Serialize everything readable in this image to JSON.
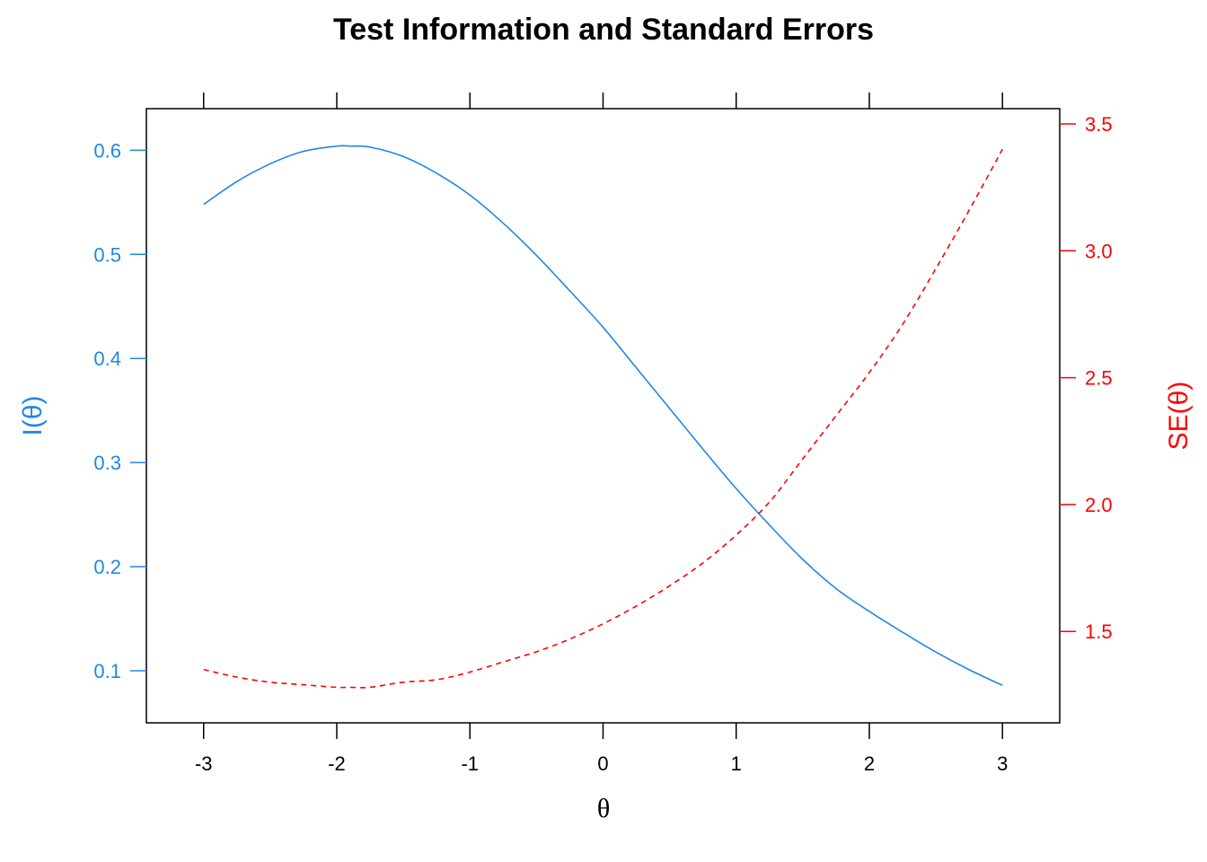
{
  "chart_data": {
    "type": "line",
    "title": "Test Information and Standard Errors",
    "xlabel": "θ",
    "ylabel_left": "I(θ)",
    "ylabel_right": "SE(θ)",
    "xlim": [
      -3.43,
      3.43
    ],
    "x_ticks": [
      -3,
      -2,
      -1,
      0,
      1,
      2,
      3
    ],
    "x_tick_labels": [
      "-3",
      "-2",
      "-1",
      "0",
      "1",
      "2",
      "3"
    ],
    "y_left_lim": [
      0.05,
      0.64
    ],
    "y_left_ticks": [
      0.1,
      0.2,
      0.3,
      0.4,
      0.5,
      0.6
    ],
    "y_left_tick_labels": [
      "0.1",
      "0.2",
      "0.3",
      "0.4",
      "0.5",
      "0.6"
    ],
    "y_right_lim": [
      1.14,
      3.56
    ],
    "y_right_ticks": [
      1.5,
      2.0,
      2.5,
      3.0,
      3.5
    ],
    "y_right_tick_labels": [
      "1.5",
      "2.0",
      "2.5",
      "3.0",
      "3.5"
    ],
    "grid": false,
    "colors": {
      "information": "#1E88E5",
      "se": "#FF0000",
      "axis": "#000000"
    },
    "series": [
      {
        "axis": "left",
        "line": "solid",
        "x": [
          -3.0,
          -2.75,
          -2.5,
          -2.25,
          -2.0,
          -1.9,
          -1.75,
          -1.5,
          -1.25,
          -1.0,
          -0.75,
          -0.5,
          -0.25,
          0.0,
          0.25,
          0.5,
          0.75,
          1.0,
          1.25,
          1.5,
          1.75,
          2.0,
          2.25,
          2.5,
          2.75,
          3.0
        ],
        "values": [
          0.548,
          0.57,
          0.587,
          0.599,
          0.604,
          0.604,
          0.603,
          0.594,
          0.578,
          0.557,
          0.53,
          0.499,
          0.465,
          0.43,
          0.391,
          0.352,
          0.313,
          0.275,
          0.24,
          0.207,
          0.179,
          0.157,
          0.137,
          0.118,
          0.101,
          0.086
        ]
      },
      {
        "axis": "right",
        "line": "dashed",
        "x": [
          -3.0,
          -2.75,
          -2.5,
          -2.25,
          -2.0,
          -1.9,
          -1.75,
          -1.5,
          -1.25,
          -1.0,
          -0.75,
          -0.5,
          -0.25,
          0.0,
          0.25,
          0.5,
          0.75,
          1.0,
          1.25,
          1.5,
          1.75,
          2.0,
          2.25,
          2.5,
          2.75,
          3.0
        ],
        "values": [
          1.35,
          1.32,
          1.3,
          1.29,
          1.28,
          1.28,
          1.28,
          1.3,
          1.31,
          1.34,
          1.38,
          1.42,
          1.47,
          1.53,
          1.6,
          1.68,
          1.77,
          1.88,
          2.01,
          2.18,
          2.35,
          2.52,
          2.71,
          2.93,
          3.16,
          3.4
        ]
      }
    ]
  }
}
